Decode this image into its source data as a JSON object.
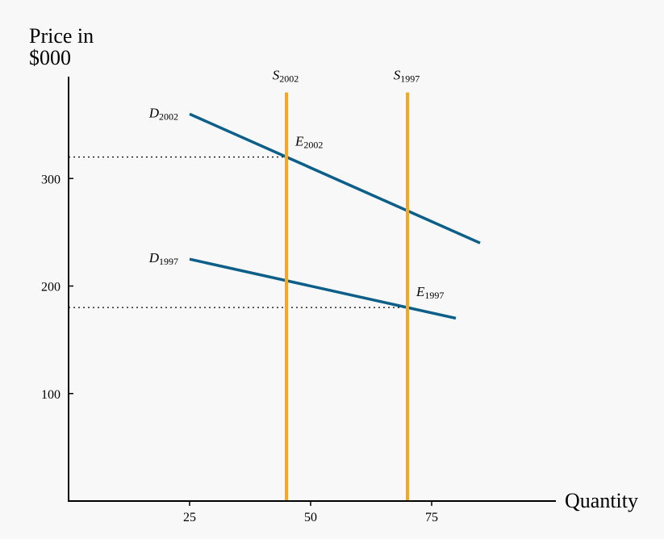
{
  "chart_data": {
    "type": "line",
    "ylabel_lines": [
      "Price in",
      "$000"
    ],
    "xlabel": "Quantity",
    "x_ticks": [
      25,
      50,
      75
    ],
    "y_ticks": [
      100,
      200,
      300
    ],
    "xlim": [
      0,
      100
    ],
    "ylim": [
      0,
      400
    ],
    "grid": false,
    "colors": {
      "demand": "#0b5f88",
      "supply": "#f5a623",
      "axis": "#000000"
    },
    "series": [
      {
        "name": "D2002",
        "label": "D",
        "sub": "2002",
        "kind": "demand",
        "points": [
          [
            25,
            360
          ],
          [
            85,
            240
          ]
        ]
      },
      {
        "name": "D1997",
        "label": "D",
        "sub": "1997",
        "kind": "demand",
        "points": [
          [
            25,
            225
          ],
          [
            80,
            170
          ]
        ]
      },
      {
        "name": "S2002",
        "label": "S",
        "sub": "2002",
        "kind": "supply",
        "points": [
          [
            45,
            0
          ],
          [
            45,
            380
          ]
        ]
      },
      {
        "name": "S1997",
        "label": "S",
        "sub": "1997",
        "kind": "supply",
        "points": [
          [
            70,
            0
          ],
          [
            70,
            380
          ]
        ]
      }
    ],
    "equilibria": [
      {
        "name": "E2002",
        "label": "E",
        "sub": "2002",
        "x": 45,
        "y": 320
      },
      {
        "name": "E1997",
        "label": "E",
        "sub": "1997",
        "x": 70,
        "y": 180
      }
    ]
  }
}
